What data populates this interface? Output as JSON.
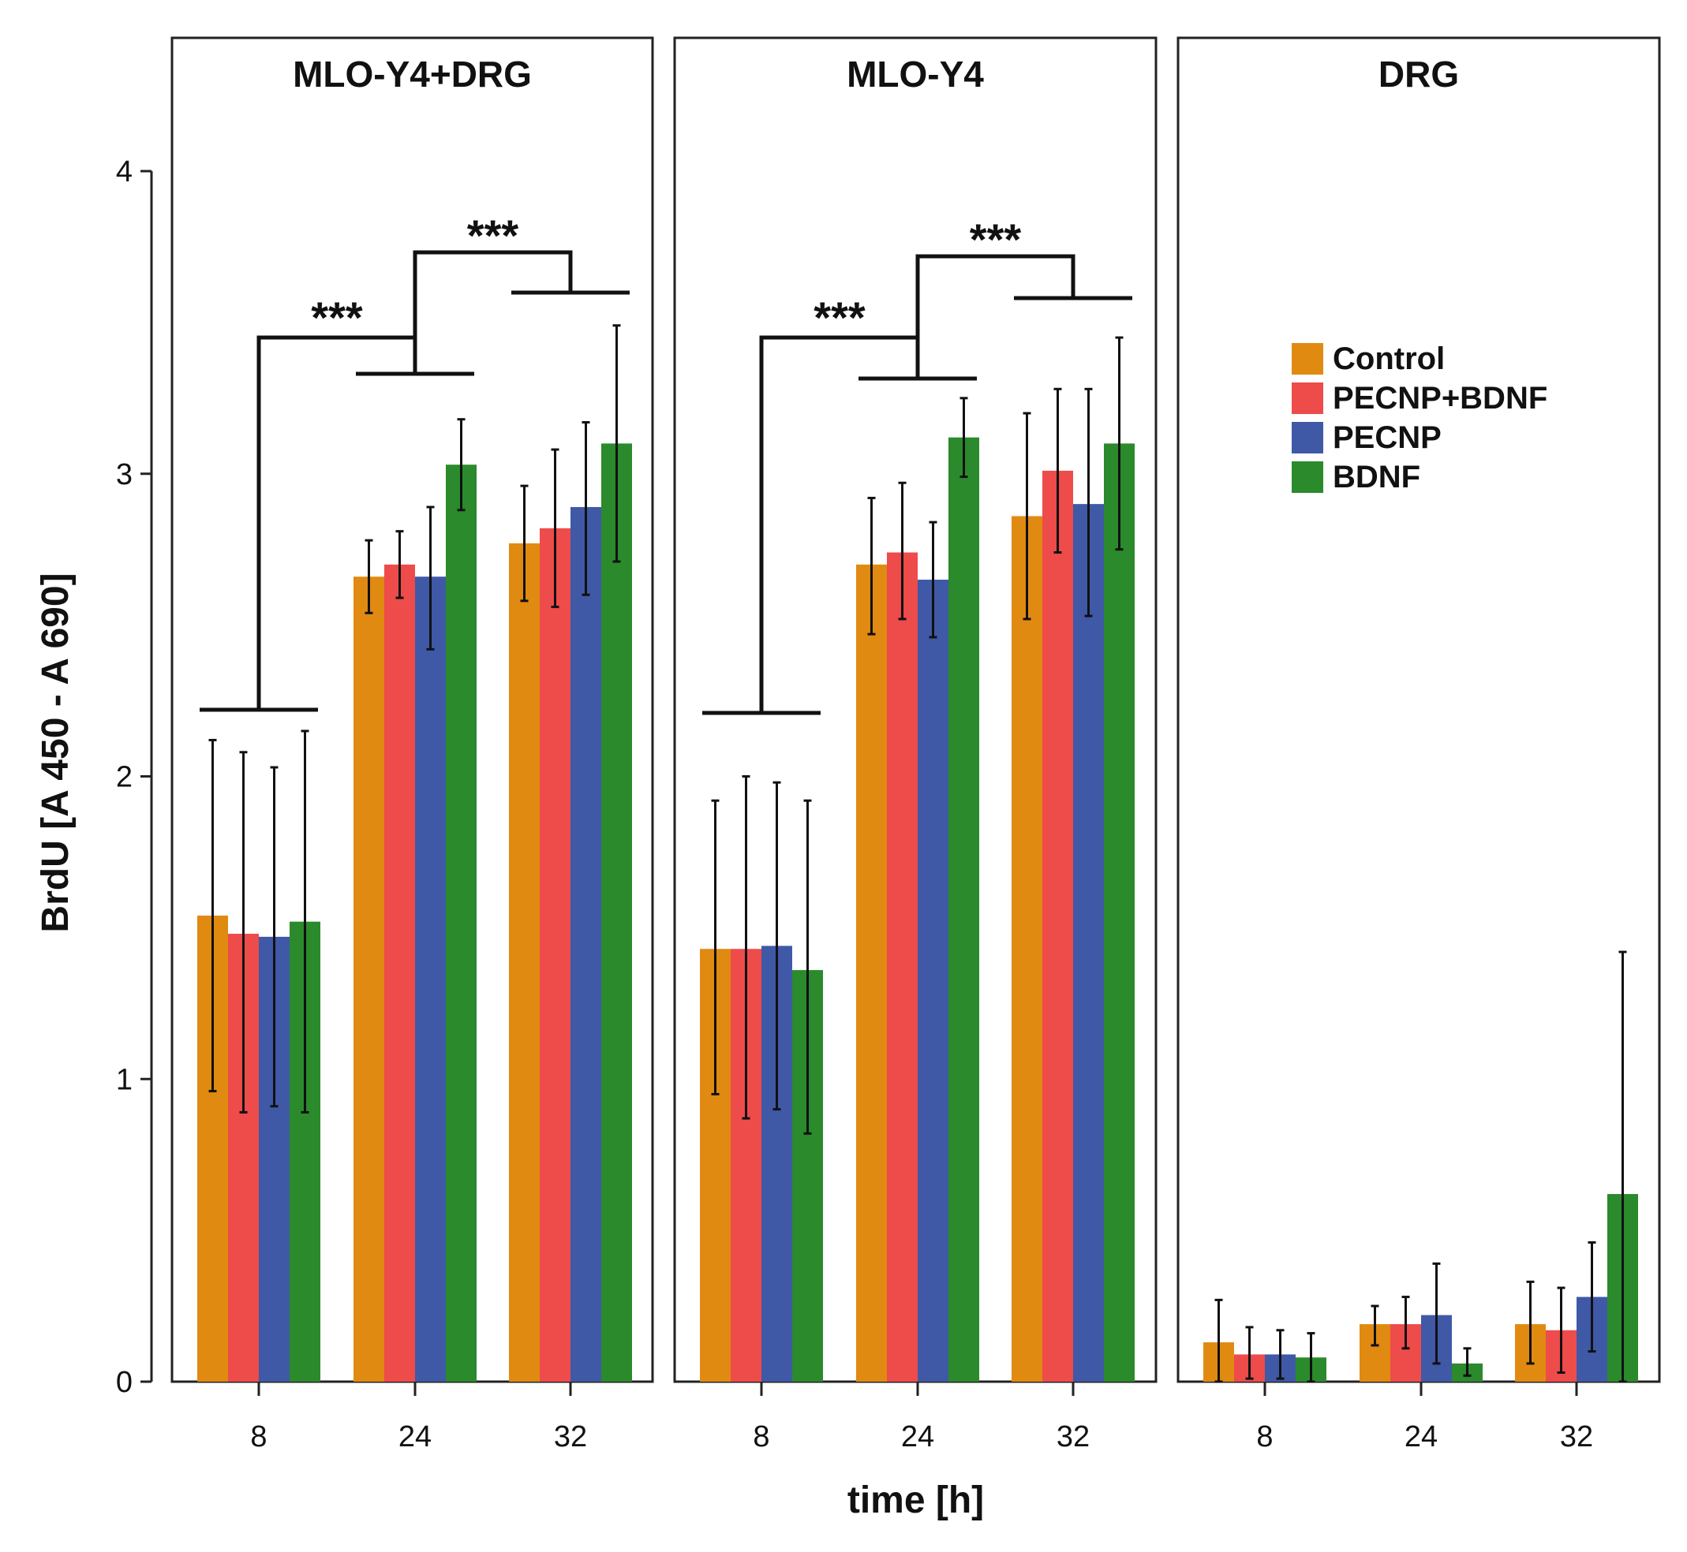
{
  "chart_data": {
    "type": "bar",
    "ylabel": "BrdU [A 450 - A 690]",
    "xlabel": "time [h]",
    "ylim": [
      0,
      4.4
    ],
    "yticks": [
      0,
      1,
      2,
      3,
      4
    ],
    "grid": false,
    "legend_position": "top-right inside DRG panel",
    "categories": [
      "8",
      "24",
      "32"
    ],
    "series_names": [
      "Control",
      "PECNP+BDNF",
      "PECNP",
      "BDNF"
    ],
    "colors": {
      "Control": "#e08a12",
      "PECNP+BDNF": "#ee4b4b",
      "PECNP": "#3f59a6",
      "BDNF": "#2a8a2c"
    },
    "panels": [
      {
        "title": "MLO-Y4+DRG",
        "series": [
          {
            "name": "Control",
            "values": [
              1.54,
              2.66,
              2.77
            ],
            "err_low": [
              0.96,
              2.54,
              2.58
            ],
            "err_high": [
              2.12,
              2.78,
              2.96
            ]
          },
          {
            "name": "PECNP+BDNF",
            "values": [
              1.48,
              2.7,
              2.82
            ],
            "err_low": [
              0.89,
              2.59,
              2.56
            ],
            "err_high": [
              2.08,
              2.81,
              3.08
            ]
          },
          {
            "name": "PECNP",
            "values": [
              1.47,
              2.66,
              2.89
            ],
            "err_low": [
              0.91,
              2.42,
              2.6
            ],
            "err_high": [
              2.03,
              2.89,
              3.17
            ]
          },
          {
            "name": "BDNF",
            "values": [
              1.52,
              3.03,
              3.1
            ],
            "err_low": [
              0.89,
              2.88,
              2.71
            ],
            "err_high": [
              2.15,
              3.18,
              3.49
            ]
          }
        ],
        "significance": [
          {
            "label": "***",
            "from": "8",
            "to": "24"
          },
          {
            "label": "***",
            "from": "24",
            "to": "32"
          }
        ]
      },
      {
        "title": "MLO-Y4",
        "series": [
          {
            "name": "Control",
            "values": [
              1.43,
              2.7,
              2.86
            ],
            "err_low": [
              0.95,
              2.47,
              2.52
            ],
            "err_high": [
              1.92,
              2.92,
              3.2
            ]
          },
          {
            "name": "PECNP+BDNF",
            "values": [
              1.43,
              2.74,
              3.01
            ],
            "err_low": [
              0.87,
              2.52,
              2.74
            ],
            "err_high": [
              2.0,
              2.97,
              3.28
            ]
          },
          {
            "name": "PECNP",
            "values": [
              1.44,
              2.65,
              2.9
            ],
            "err_low": [
              0.9,
              2.46,
              2.53
            ],
            "err_high": [
              1.98,
              2.84,
              3.28
            ]
          },
          {
            "name": "BDNF",
            "values": [
              1.36,
              3.12,
              3.1
            ],
            "err_low": [
              0.82,
              2.99,
              2.75
            ],
            "err_high": [
              1.92,
              3.25,
              3.45
            ]
          }
        ],
        "significance": [
          {
            "label": "***",
            "from": "8",
            "to": "24"
          },
          {
            "label": "***",
            "from": "24",
            "to": "32"
          }
        ]
      },
      {
        "title": "DRG",
        "series": [
          {
            "name": "Control",
            "values": [
              0.13,
              0.19,
              0.19
            ],
            "err_low": [
              0.0,
              0.12,
              0.06
            ],
            "err_high": [
              0.27,
              0.25,
              0.33
            ]
          },
          {
            "name": "PECNP+BDNF",
            "values": [
              0.09,
              0.19,
              0.17
            ],
            "err_low": [
              0.01,
              0.11,
              0.03
            ],
            "err_high": [
              0.18,
              0.28,
              0.31
            ]
          },
          {
            "name": "PECNP",
            "values": [
              0.09,
              0.22,
              0.28
            ],
            "err_low": [
              0.01,
              0.06,
              0.1
            ],
            "err_high": [
              0.17,
              0.39,
              0.46
            ]
          },
          {
            "name": "BDNF",
            "values": [
              0.08,
              0.06,
              0.62
            ],
            "err_low": [
              0.0,
              0.02,
              0.0
            ],
            "err_high": [
              0.16,
              0.11,
              1.42
            ]
          }
        ],
        "significance": []
      }
    ]
  }
}
